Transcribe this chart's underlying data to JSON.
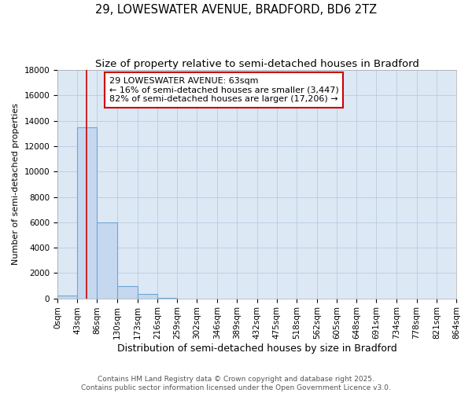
{
  "title": "29, LOWESWATER AVENUE, BRADFORD, BD6 2TZ",
  "subtitle": "Size of property relative to semi-detached houses in Bradford",
  "xlabel": "Distribution of semi-detached houses by size in Bradford",
  "ylabel": "Number of semi-detached properties",
  "bin_edges": [
    0,
    43,
    86,
    130,
    173,
    216,
    259,
    302,
    346,
    389,
    432,
    475,
    518,
    562,
    605,
    648,
    691,
    734,
    778,
    821,
    864
  ],
  "bar_values": [
    200,
    13500,
    6000,
    950,
    350,
    50,
    0,
    0,
    0,
    0,
    0,
    0,
    0,
    0,
    0,
    0,
    0,
    0,
    0,
    0
  ],
  "bar_color": "#c5d8f0",
  "bar_edgecolor": "#6ea6d4",
  "property_size": 63,
  "vline_color": "#cc0000",
  "annotation_text": "29 LOWESWATER AVENUE: 63sqm\n← 16% of semi-detached houses are smaller (3,447)\n82% of semi-detached houses are larger (17,206) →",
  "annotation_box_color": "white",
  "annotation_box_edgecolor": "#cc0000",
  "ylim": [
    0,
    18000
  ],
  "yticks": [
    0,
    2000,
    4000,
    6000,
    8000,
    10000,
    12000,
    14000,
    16000,
    18000
  ],
  "background_color": "#dde8f5",
  "grid_color": "#b8cce0",
  "footer_text": "Contains HM Land Registry data © Crown copyright and database right 2025.\nContains public sector information licensed under the Open Government Licence v3.0.",
  "title_fontsize": 10.5,
  "subtitle_fontsize": 9.5,
  "xlabel_fontsize": 9,
  "ylabel_fontsize": 8,
  "tick_fontsize": 7.5,
  "annotation_fontsize": 8,
  "footer_fontsize": 6.5
}
